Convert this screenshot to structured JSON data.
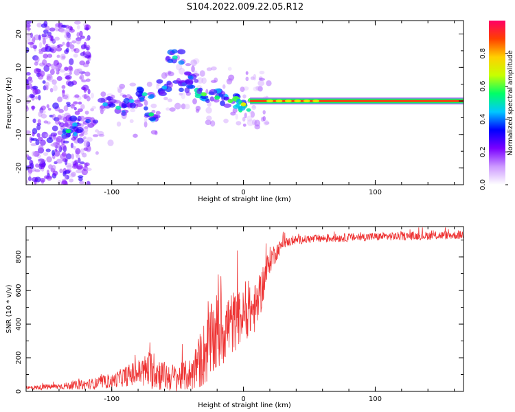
{
  "title": "S104.2022.009.22.05.R12",
  "chart_data": [
    {
      "type": "heatmap",
      "xlabel": "Height of straight line (km)",
      "ylabel": "Frequency (Hz)",
      "xlim": [
        -165,
        167
      ],
      "ylim": [
        -25,
        24
      ],
      "xticks": [
        -100,
        0,
        100
      ],
      "yticks": [
        -20,
        -10,
        0,
        10,
        20
      ],
      "colorbar": {
        "label": "Normalized spectral amplitude",
        "range": [
          0,
          1
        ],
        "ticks": [
          "0.0",
          "0.2",
          "0.4",
          "0.6",
          "0.8"
        ],
        "colors": [
          "#ffffff",
          "#cc99ff",
          "#7a00ff",
          "#0000ff",
          "#00c8ff",
          "#00ff66",
          "#c8ff00",
          "#ffd000",
          "#ff4000",
          "#ff0066"
        ]
      },
      "features": {
        "noise_region_x": [
          -165,
          -125
        ],
        "clusters": [
          {
            "x": -133,
            "y": -9,
            "amp": 0.55
          },
          {
            "x": -128,
            "y": -7,
            "amp": 0.45
          },
          {
            "x": -118,
            "y": -6,
            "amp": 0.35
          },
          {
            "x": -105,
            "y": -1,
            "amp": 0.45
          },
          {
            "x": -95,
            "y": -2,
            "amp": 0.5
          },
          {
            "x": -85,
            "y": 0,
            "amp": 0.45
          },
          {
            "x": -75,
            "y": 2,
            "amp": 0.5
          },
          {
            "x": -70,
            "y": -4,
            "amp": 0.55
          },
          {
            "x": -60,
            "y": 4,
            "amp": 0.45
          },
          {
            "x": -52,
            "y": 13,
            "amp": 0.5
          },
          {
            "x": -45,
            "y": 5,
            "amp": 0.45
          },
          {
            "x": -40,
            "y": 7,
            "amp": 0.4
          },
          {
            "x": -30,
            "y": 2,
            "amp": 0.6
          },
          {
            "x": -20,
            "y": 1,
            "amp": 0.55
          },
          {
            "x": -10,
            "y": 0,
            "amp": 0.6
          },
          {
            "x": 0,
            "y": -1,
            "amp": 0.7
          }
        ],
        "carrier": {
          "x_start": 5,
          "x_end": 167,
          "y": 0,
          "amp": 0.9
        }
      }
    },
    {
      "type": "line",
      "xlabel": "Height of straight line (km)",
      "ylabel": "SNR (10 * v/v)",
      "xlim": [
        -165,
        167
      ],
      "ylim": [
        0,
        980
      ],
      "xticks": [
        -100,
        0,
        100
      ],
      "yticks": [
        0,
        200,
        400,
        600,
        800
      ],
      "color": "#ee3333",
      "envelope": {
        "x": [
          -165,
          -140,
          -120,
          -100,
          -90,
          -80,
          -70,
          -60,
          -50,
          -40,
          -30,
          -20,
          -10,
          0,
          10,
          20,
          30,
          40,
          60,
          100,
          167
        ],
        "mean": [
          20,
          30,
          40,
          60,
          90,
          110,
          130,
          90,
          80,
          100,
          220,
          350,
          400,
          450,
          500,
          780,
          880,
          900,
          910,
          920,
          930
        ],
        "spread": [
          12,
          18,
          30,
          40,
          60,
          80,
          120,
          90,
          80,
          100,
          200,
          250,
          200,
          150,
          150,
          80,
          30,
          25,
          25,
          25,
          25
        ]
      }
    }
  ]
}
